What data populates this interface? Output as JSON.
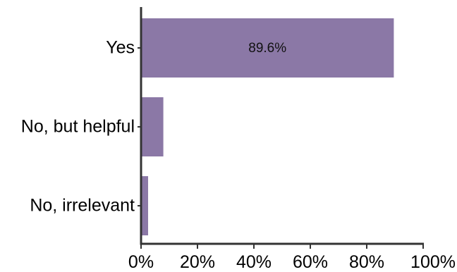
{
  "chart_data": {
    "type": "bar",
    "orientation": "horizontal",
    "categories": [
      "Yes",
      "No, but helpful",
      "No, irrelevant"
    ],
    "values": [
      89.6,
      7.9,
      2.5
    ],
    "data_labels": [
      "89.6%",
      "",
      ""
    ],
    "x_ticks": [
      "0%",
      "20%",
      "40%",
      "60%",
      "80%",
      "100%"
    ],
    "xlim": [
      0,
      100
    ],
    "title": "",
    "xlabel": "",
    "ylabel": "",
    "grid": false,
    "legend": "none",
    "bar_color": "#8b78a6",
    "axis_color": "#333333"
  }
}
